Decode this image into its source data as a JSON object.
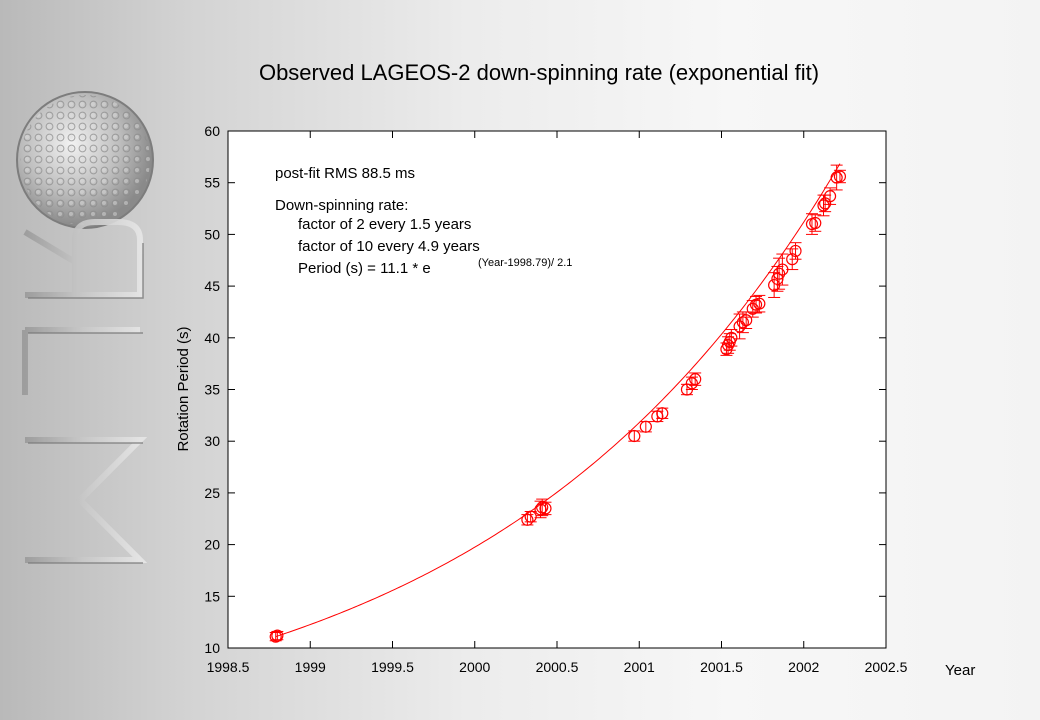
{
  "chart_data": {
    "type": "scatter",
    "title": "Observed LAGEOS-2 down-spinning rate (exponential fit)",
    "xlabel": "Year",
    "ylabel": "Rotation Period (s)",
    "xlim": [
      1998.5,
      2002.5
    ],
    "ylim": [
      10,
      60
    ],
    "xticks": [
      "1998.5",
      "1999",
      "1999.5",
      "2000",
      "2000.5",
      "2001",
      "2001.5",
      "2002",
      "2002.5"
    ],
    "yticks": [
      "10",
      "15",
      "20",
      "25",
      "30",
      "35",
      "40",
      "45",
      "50",
      "55",
      "60"
    ],
    "grid": false,
    "marker_color": "#ff0000",
    "fit": {
      "formula_base": "Period (s) = 11.1 * e",
      "formula_exponent": "(Year-1998.79)/ 2.1",
      "a": 11.1,
      "x0": 1998.79,
      "tau": 2.1
    },
    "annotations": {
      "rms": "post-fit RMS 88.5 ms",
      "rate_title": "Down-spinning rate:",
      "factor2": "factor of 2 every 1.5 years",
      "factor10": "factor of 10 every 4.9 years"
    },
    "series": [
      {
        "points": [
          {
            "x": 1998.79,
            "y": 11.1,
            "err": 0.4
          },
          {
            "x": 1998.8,
            "y": 11.2,
            "err": 0.4
          },
          {
            "x": 2000.32,
            "y": 22.4,
            "err": 0.5
          },
          {
            "x": 2000.34,
            "y": 22.7,
            "err": 0.5
          },
          {
            "x": 2000.4,
            "y": 23.4,
            "err": 0.8
          },
          {
            "x": 2000.41,
            "y": 23.6,
            "err": 0.8
          },
          {
            "x": 2000.43,
            "y": 23.5,
            "err": 0.6
          },
          {
            "x": 2000.97,
            "y": 30.5,
            "err": 0.5
          },
          {
            "x": 2001.04,
            "y": 31.4,
            "err": 0.5
          },
          {
            "x": 2001.11,
            "y": 32.4,
            "err": 0.5
          },
          {
            "x": 2001.14,
            "y": 32.7,
            "err": 0.5
          },
          {
            "x": 2001.29,
            "y": 35.0,
            "err": 0.5
          },
          {
            "x": 2001.32,
            "y": 35.6,
            "err": 0.6
          },
          {
            "x": 2001.34,
            "y": 36.0,
            "err": 0.6
          },
          {
            "x": 2001.53,
            "y": 38.9,
            "err": 0.6
          },
          {
            "x": 2001.54,
            "y": 39.3,
            "err": 0.8
          },
          {
            "x": 2001.55,
            "y": 39.6,
            "err": 0.8
          },
          {
            "x": 2001.56,
            "y": 40.0,
            "err": 0.8
          },
          {
            "x": 2001.61,
            "y": 41.1,
            "err": 1.2
          },
          {
            "x": 2001.63,
            "y": 41.5,
            "err": 1.0
          },
          {
            "x": 2001.65,
            "y": 41.7,
            "err": 0.8
          },
          {
            "x": 2001.69,
            "y": 42.8,
            "err": 0.8
          },
          {
            "x": 2001.71,
            "y": 43.2,
            "err": 0.8
          },
          {
            "x": 2001.73,
            "y": 43.3,
            "err": 0.8
          },
          {
            "x": 2001.82,
            "y": 45.1,
            "err": 1.2
          },
          {
            "x": 2001.84,
            "y": 45.7,
            "err": 1.2
          },
          {
            "x": 2001.85,
            "y": 46.2,
            "err": 1.5
          },
          {
            "x": 2001.87,
            "y": 46.6,
            "err": 1.5
          },
          {
            "x": 2001.93,
            "y": 47.6,
            "err": 1.0
          },
          {
            "x": 2001.95,
            "y": 48.4,
            "err": 0.8
          },
          {
            "x": 2002.05,
            "y": 51.0,
            "err": 1.0
          },
          {
            "x": 2002.07,
            "y": 51.1,
            "err": 0.8
          },
          {
            "x": 2002.12,
            "y": 52.8,
            "err": 1.0
          },
          {
            "x": 2002.13,
            "y": 53.0,
            "err": 0.8
          },
          {
            "x": 2002.16,
            "y": 53.7,
            "err": 0.8
          },
          {
            "x": 2002.2,
            "y": 55.5,
            "err": 1.2
          },
          {
            "x": 2002.22,
            "y": 55.6,
            "err": 0.6
          }
        ]
      }
    ]
  }
}
